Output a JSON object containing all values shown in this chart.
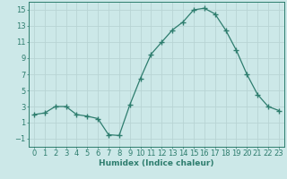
{
  "x": [
    0,
    1,
    2,
    3,
    4,
    5,
    6,
    7,
    8,
    9,
    10,
    11,
    12,
    13,
    14,
    15,
    16,
    17,
    18,
    19,
    20,
    21,
    22,
    23
  ],
  "y": [
    2.0,
    2.2,
    3.0,
    3.0,
    2.0,
    1.8,
    1.5,
    -0.5,
    -0.6,
    3.2,
    6.5,
    9.5,
    11.0,
    12.5,
    13.5,
    15.0,
    15.2,
    14.5,
    12.5,
    10.0,
    7.0,
    4.5,
    3.0,
    2.5
  ],
  "line_color": "#2e7d6e",
  "marker_color": "#2e7d6e",
  "bg_color": "#cce8e8",
  "grid_color": "#b8d4d4",
  "xlabel": "Humidex (Indice chaleur)",
  "xlim": [
    -0.5,
    23.5
  ],
  "ylim": [
    -2,
    16
  ],
  "yticks": [
    -1,
    1,
    3,
    5,
    7,
    9,
    11,
    13,
    15
  ],
  "xtick_labels": [
    "0",
    "1",
    "2",
    "3",
    "4",
    "5",
    "6",
    "7",
    "8",
    "9",
    "10",
    "11",
    "12",
    "13",
    "14",
    "15",
    "16",
    "17",
    "18",
    "19",
    "20",
    "21",
    "22",
    "23"
  ],
  "xlabel_fontsize": 6.5,
  "tick_fontsize": 6.0
}
